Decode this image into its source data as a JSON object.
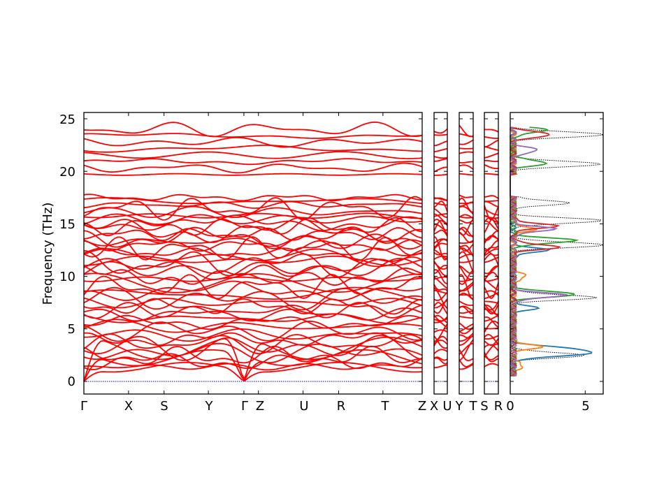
{
  "chart_data": {
    "type": "line",
    "title": "",
    "ylabel": "Frequency (THz)",
    "ylim": [
      -1.2,
      25.6
    ],
    "y_ticks": [
      0,
      5,
      10,
      15,
      20,
      25
    ],
    "zero_line_color": "#0000ff",
    "band_color": "#ff0000",
    "panels": [
      {
        "name": "band-structure-main",
        "kpoint_labels": [
          "Γ",
          "X",
          "S",
          "Y",
          "Γ",
          "Z",
          "U",
          "R",
          "T",
          "Z"
        ],
        "kpoint_positions": [
          0,
          0.132,
          0.237,
          0.368,
          0.473,
          0.516,
          0.648,
          0.753,
          0.884,
          1.0
        ]
      },
      {
        "name": "band-path-z-x",
        "kpoint_labels": [
          "Z",
          "X"
        ]
      },
      {
        "name": "band-path-u-y",
        "kpoint_labels": [
          "U",
          "Y"
        ]
      },
      {
        "name": "band-path-t-s",
        "kpoint_labels": [
          "T",
          "S"
        ]
      },
      {
        "name": "band-path-r",
        "kpoint_labels": [
          "R"
        ]
      }
    ],
    "band_groups": {
      "acoustic": {
        "max_at_edge": 4.2,
        "count": 3
      },
      "optical_low": {
        "range": [
          1.4,
          17.5
        ],
        "count": 44
      },
      "optical_high": {
        "range": [
          19.7,
          24.0
        ],
        "count": 8
      }
    },
    "dos": {
      "xlim": [
        0,
        6.2
      ],
      "x_ticks": [
        0,
        5
      ],
      "series": [
        {
          "color": "#000000",
          "style": "dotted",
          "peaks": [
            [
              2.5,
              4.8
            ],
            [
              8.0,
              5.5
            ],
            [
              13.0,
              6.2
            ],
            [
              15.3,
              6.0
            ],
            [
              17.0,
              3.6
            ],
            [
              20.7,
              6.0
            ],
            [
              23.5,
              6.2
            ]
          ]
        },
        {
          "color": "#1f77b4",
          "style": "solid",
          "peaks": [
            [
              2.6,
              4.4
            ],
            [
              3.1,
              3.8
            ],
            [
              7.0,
              1.5
            ],
            [
              12.5,
              2.2
            ]
          ]
        },
        {
          "color": "#ff7f0e",
          "style": "solid",
          "peaks": [
            [
              1.5,
              0.7
            ],
            [
              3.3,
              1.8
            ],
            [
              10.0,
              0.9
            ],
            [
              14.5,
              1.4
            ]
          ]
        },
        {
          "color": "#2ca02c",
          "style": "solid",
          "peaks": [
            [
              8.3,
              4.3
            ],
            [
              13.4,
              4.2
            ],
            [
              20.8,
              2.3
            ],
            [
              23.9,
              2.2
            ]
          ]
        },
        {
          "color": "#d62728",
          "style": "solid",
          "peaks": [
            [
              12.8,
              3.0
            ],
            [
              14.8,
              2.8
            ],
            [
              23.5,
              2.6
            ]
          ]
        },
        {
          "color": "#9467bd",
          "style": "solid",
          "peaks": [
            [
              8.2,
              3.4
            ],
            [
              14.5,
              2.7
            ],
            [
              22.0,
              1.7
            ]
          ]
        }
      ]
    }
  },
  "labels": {
    "ylabel": "Frequency (THz)",
    "y_ticks": [
      "0",
      "5",
      "10",
      "15",
      "20",
      "25"
    ],
    "main_k": [
      "Γ",
      "X",
      "S",
      "Y",
      "Γ",
      "Z",
      "U",
      "R",
      "T",
      "Z"
    ],
    "sub1_k": [
      "X",
      "U"
    ],
    "sub2_k": [
      "Y",
      "T"
    ],
    "sub3_k": [
      "S",
      "R"
    ],
    "dos_ticks": [
      "0",
      "5"
    ]
  }
}
